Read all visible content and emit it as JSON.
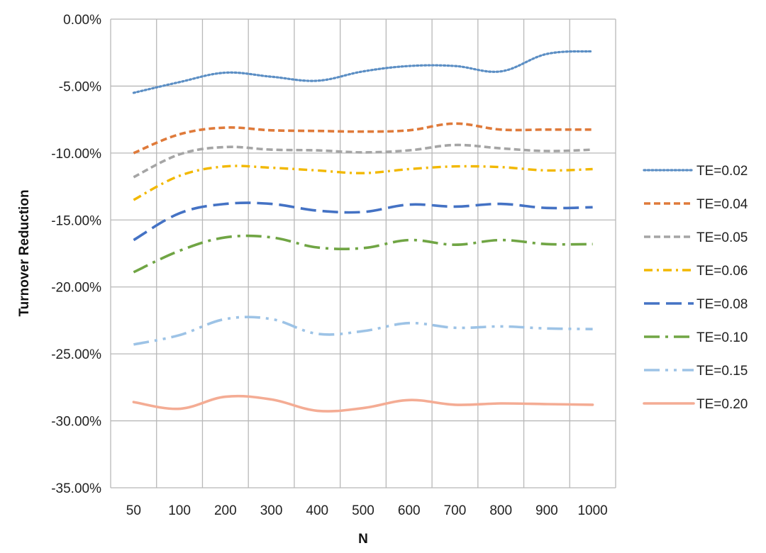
{
  "chart_data": {
    "type": "line",
    "title": "",
    "xlabel": "N",
    "ylabel": "Turnover Reduction",
    "categories": [
      "50",
      "100",
      "200",
      "300",
      "400",
      "500",
      "600",
      "700",
      "800",
      "900",
      "1000"
    ],
    "y_ticks": [
      "0.00%",
      "-5.00%",
      "-10.00%",
      "-15.00%",
      "-20.00%",
      "-25.00%",
      "-30.00%",
      "-35.00%"
    ],
    "ylim": [
      -35,
      0
    ],
    "y_unit": "%",
    "grid": true,
    "legend_position": "right",
    "series": [
      {
        "name": "TE=0.02",
        "color": "#5b8ec4",
        "dash": "dot",
        "values": [
          -5.5,
          -4.7,
          -4.0,
          -4.3,
          -4.6,
          -3.9,
          -3.5,
          -3.5,
          -3.9,
          -2.6,
          -2.4
        ]
      },
      {
        "name": "TE=0.04",
        "color": "#df7a3a",
        "dash": "dash",
        "values": [
          -10.0,
          -8.6,
          -8.1,
          -8.3,
          -8.35,
          -8.4,
          -8.3,
          -7.8,
          -8.25,
          -8.25,
          -8.25
        ]
      },
      {
        "name": "TE=0.05",
        "color": "#a5a5a5",
        "dash": "dash",
        "values": [
          -11.8,
          -10.1,
          -9.55,
          -9.75,
          -9.8,
          -9.95,
          -9.8,
          -9.4,
          -9.65,
          -9.85,
          -9.75
        ]
      },
      {
        "name": "TE=0.06",
        "color": "#f2b800",
        "dash": "dashdot",
        "values": [
          -13.5,
          -11.7,
          -11.0,
          -11.1,
          -11.3,
          -11.5,
          -11.2,
          -11.0,
          -11.05,
          -11.3,
          -11.2
        ]
      },
      {
        "name": "TE=0.08",
        "color": "#4472c4",
        "dash": "longdash",
        "values": [
          -16.5,
          -14.5,
          -13.8,
          -13.8,
          -14.3,
          -14.4,
          -13.85,
          -14.0,
          -13.8,
          -14.1,
          -14.05
        ]
      },
      {
        "name": "TE=0.10",
        "color": "#70a544",
        "dash": "longdashdot",
        "values": [
          -18.9,
          -17.3,
          -16.3,
          -16.3,
          -17.05,
          -17.1,
          -16.5,
          -16.85,
          -16.5,
          -16.8,
          -16.8
        ]
      },
      {
        "name": "TE=0.15",
        "color": "#9dc3e6",
        "dash": "longdashdotdot",
        "values": [
          -24.3,
          -23.6,
          -22.4,
          -22.4,
          -23.5,
          -23.3,
          -22.7,
          -23.05,
          -22.95,
          -23.1,
          -23.15
        ]
      },
      {
        "name": "TE=0.20",
        "color": "#f4ac94",
        "dash": "solid",
        "values": [
          -28.6,
          -29.1,
          -28.2,
          -28.4,
          -29.25,
          -29.05,
          -28.45,
          -28.8,
          -28.7,
          -28.75,
          -28.8
        ]
      }
    ]
  }
}
